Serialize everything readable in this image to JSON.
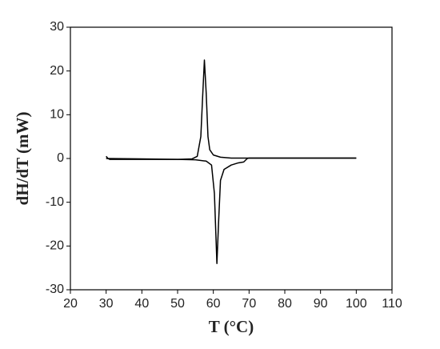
{
  "chart_data": {
    "type": "line",
    "x_label": "T (°C)",
    "y_label": "dH/dT (mW)",
    "series": [
      {
        "color": "#000000",
        "x": [
          30,
          30.5,
          31,
          40,
          50,
          54,
          55.5,
          56.5,
          57,
          57.5,
          58,
          58.5,
          59,
          60,
          62,
          65,
          70,
          80,
          90,
          100
        ],
        "values": [
          0.5,
          0,
          -0.2,
          -0.2,
          -0.2,
          -0.1,
          0.5,
          5,
          14,
          22.5,
          15,
          5,
          2,
          0.8,
          0.3,
          0.1,
          0.1,
          0.1,
          0.1,
          0.1
        ]
      },
      {
        "color": "#000000",
        "x": [
          30,
          40,
          50,
          55,
          58,
          59.5,
          60.3,
          61,
          61.5,
          62,
          63,
          65,
          67,
          68.5,
          69.5,
          70,
          80,
          100
        ],
        "values": [
          0,
          -0.1,
          -0.2,
          -0.3,
          -0.6,
          -1.5,
          -8,
          -24,
          -14,
          -5,
          -2.5,
          -1.5,
          -1,
          -0.8,
          0,
          0.1,
          0.1,
          0.1
        ]
      }
    ],
    "xlim": [
      20,
      110
    ],
    "xticks": [
      20,
      30,
      40,
      50,
      60,
      70,
      80,
      90,
      100,
      110
    ],
    "ylim": [
      -30,
      30
    ],
    "yticks": [
      -30,
      -20,
      -10,
      0,
      10,
      20,
      30
    ]
  }
}
